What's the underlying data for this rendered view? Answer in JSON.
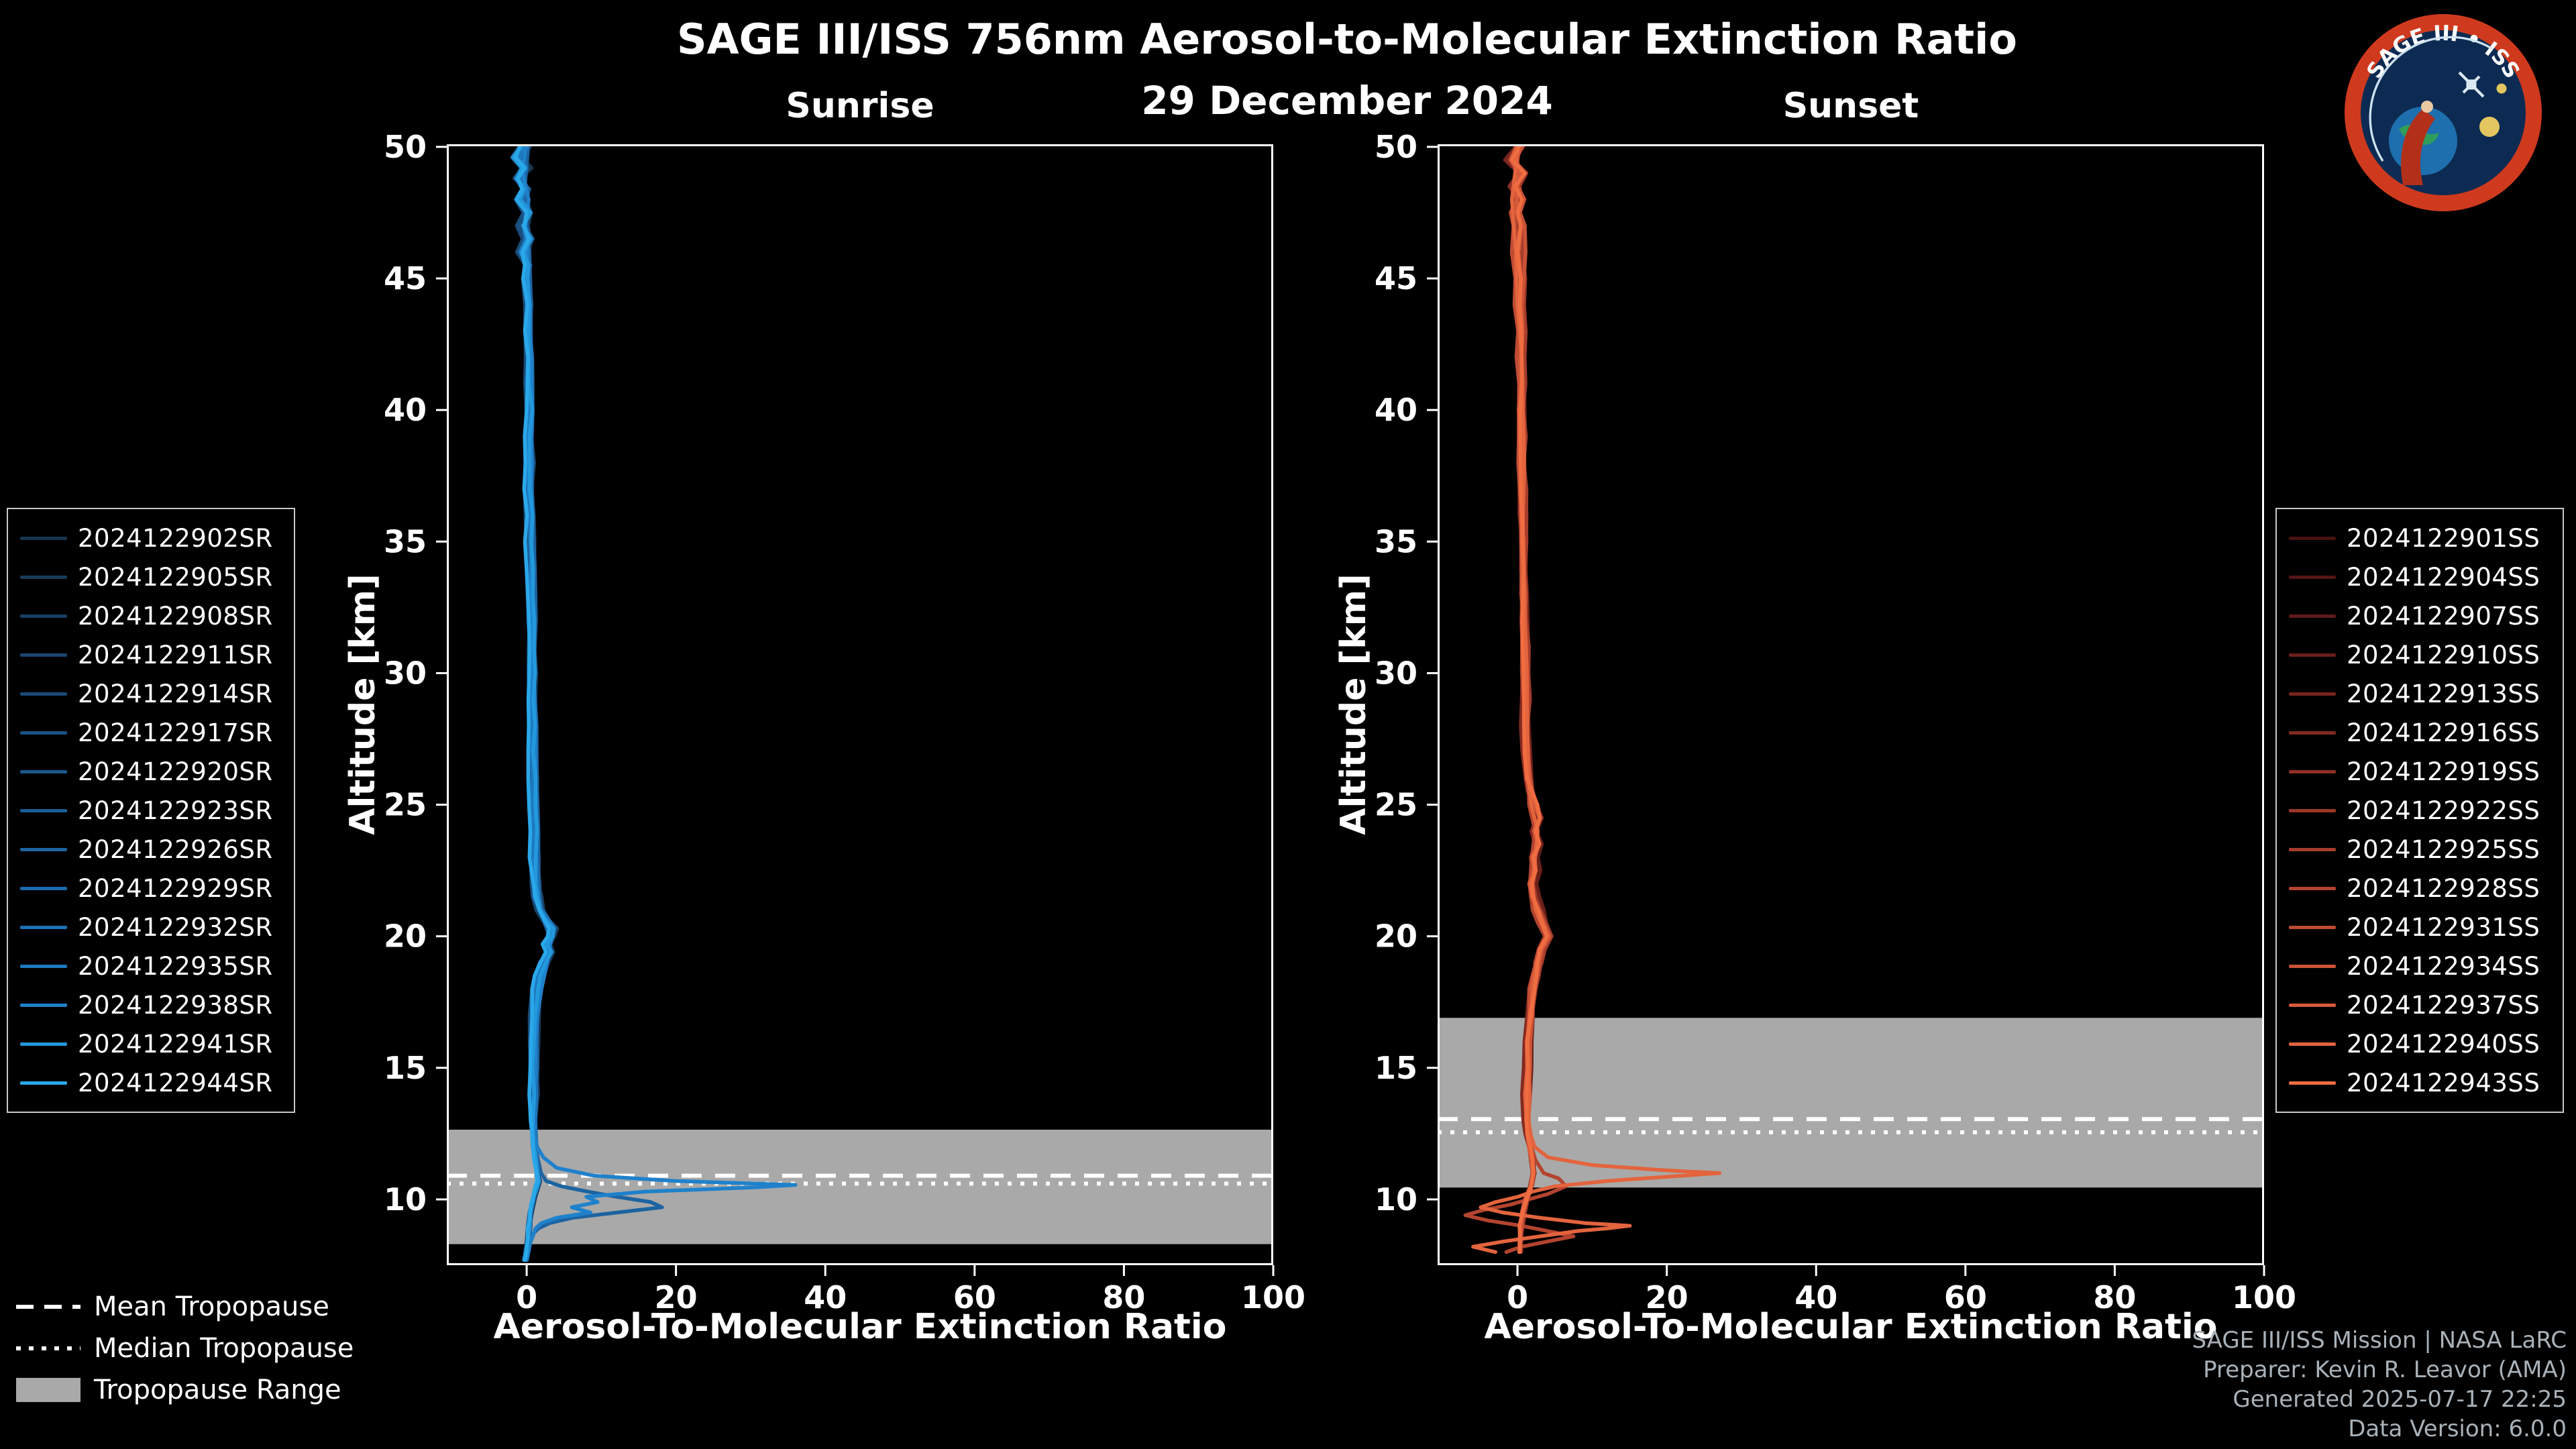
{
  "header": {
    "title": "SAGE III/ISS 756nm Aerosol-to-Molecular Extinction Ratio",
    "date": "29 December 2024"
  },
  "logo": {
    "title": "SAGE III • ISS"
  },
  "legend_tropopause": {
    "mean": "Mean Tropopause",
    "median": "Median Tropopause",
    "range": "Tropopause Range"
  },
  "credits": {
    "line1": "SAGE III/ISS Mission | NASA LaRC",
    "line2": "Preparer: Kevin R. Leavor (AMA)",
    "line3": "Generated 2025-07-17 22:25",
    "line4": "Data Version: 6.0.0"
  },
  "colors": {
    "background": "#000000",
    "axis": "#ffffff",
    "band": "#a9a9a9",
    "tropopause_line": "#ffffff",
    "sunrise_accent": "#2aa8ea",
    "sunset_accent": "#ef6d41"
  },
  "chart_data": [
    {
      "type": "line",
      "title": "Sunrise",
      "xlabel": "Aerosol-To-Molecular Extinction Ratio",
      "ylabel": "Altitude [km]",
      "xlim": [
        -10.7,
        100
      ],
      "ylim": [
        7.5,
        50.1
      ],
      "xticks": [
        0,
        20,
        40,
        60,
        80,
        100
      ],
      "yticks": [
        10,
        15,
        20,
        25,
        30,
        35,
        40,
        45,
        50
      ],
      "grid": false,
      "legend_position": "outside-left",
      "tropopause": {
        "mean_km": 10.9,
        "median_km": 10.6,
        "range_km": [
          8.3,
          12.65
        ]
      },
      "profiles": {
        "main": {
          "alt_km": [
            50,
            49.6,
            49.2,
            48.8,
            48.4,
            48,
            47.5,
            47,
            46.5,
            46,
            45.5,
            45,
            44,
            43,
            42,
            41,
            40,
            39,
            38,
            37,
            36,
            35,
            34,
            33,
            32,
            31,
            30,
            29,
            28,
            27,
            26,
            25,
            24,
            23,
            22,
            21.5,
            21,
            20.6,
            20.3,
            20,
            19.7,
            19.4,
            19,
            18.5,
            18,
            17,
            16,
            15,
            14,
            13,
            12.5,
            12,
            11.5,
            11,
            10.7,
            10.4,
            10.1,
            9.8,
            9.5,
            9.2,
            8.9,
            8.6,
            8.3,
            8,
            7.7
          ],
          "ratio": [
            -0.4,
            -1.3,
            -0.2,
            -1.0,
            0.1,
            -0.6,
            0.2,
            -0.4,
            0.3,
            -0.2,
            0.2,
            0.0,
            0.3,
            0.1,
            0.3,
            0.2,
            0.4,
            0.2,
            0.4,
            0.3,
            0.5,
            0.4,
            0.5,
            0.5,
            0.6,
            0.6,
            0.7,
            0.7,
            0.8,
            0.8,
            0.9,
            0.9,
            1.0,
            1.0,
            1.2,
            1.4,
            1.9,
            2.8,
            3.6,
            3.2,
            2.6,
            3.0,
            2.2,
            1.6,
            1.2,
            1.0,
            0.9,
            0.8,
            0.8,
            0.8,
            0.9,
            1.0,
            1.2,
            1.4,
            1.6,
            1.3,
            1.0,
            0.7,
            0.5,
            0.4,
            0.3,
            0.2,
            0.1,
            0.0,
            -0.2
          ]
        },
        "enhanced": {
          "alt_km": [
            50,
            49,
            48,
            47,
            46,
            45,
            44,
            43,
            42,
            41,
            40,
            38,
            36,
            34,
            32,
            30,
            28,
            26,
            24,
            22,
            21,
            20.5,
            20,
            19.5,
            19,
            18,
            17,
            16,
            15,
            14,
            13,
            12.5,
            12,
            11.6,
            11.2,
            10.9,
            10.7,
            10.55,
            10.45,
            10.3,
            10.1,
            9.9,
            9.7,
            9.5,
            9.3,
            9.1,
            8.9,
            8.6,
            8.3,
            8,
            7.7
          ],
          "ratio": [
            -0.5,
            -1.0,
            0,
            -0.4,
            0.2,
            0,
            0.3,
            0.1,
            0.3,
            0.2,
            0.4,
            0.4,
            0.5,
            0.6,
            0.6,
            0.7,
            0.8,
            0.9,
            1.0,
            1.2,
            1.6,
            2.6,
            3.4,
            2.8,
            2.4,
            1.6,
            1.2,
            1.0,
            0.9,
            0.8,
            0.8,
            1.0,
            1.4,
            2.2,
            4.0,
            9.0,
            20.0,
            36.0,
            30.0,
            16.0,
            8.0,
            9.5,
            6.0,
            8.5,
            4.0,
            2.0,
            1.2,
            0.8,
            0.4,
            0.2,
            0
          ]
        },
        "enhanced2": {
          "alt_km": [
            50,
            48,
            46,
            44,
            42,
            40,
            38,
            36,
            34,
            32,
            30,
            28,
            26,
            24,
            22,
            21,
            20.5,
            20,
            19.5,
            19,
            18,
            17,
            16,
            15,
            14,
            13,
            12.5,
            12,
            11.5,
            11,
            10.7,
            10.5,
            10.3,
            10.1,
            9.9,
            9.7,
            9.5,
            9.3,
            9.1,
            8.9,
            8.7,
            8.4,
            8.1,
            7.8
          ],
          "ratio": [
            -0.3,
            -0.8,
            0.1,
            0.2,
            0.3,
            0.4,
            0.4,
            0.5,
            0.6,
            0.7,
            0.7,
            0.8,
            0.9,
            1.0,
            1.2,
            1.5,
            2.2,
            3.0,
            2.6,
            2.2,
            1.5,
            1.2,
            1.0,
            0.9,
            0.8,
            0.8,
            0.9,
            1.1,
            1.4,
            1.8,
            2.5,
            4.5,
            8.0,
            12.0,
            16.5,
            18.0,
            12.0,
            6.0,
            3.0,
            1.5,
            0.8,
            0.4,
            0.2,
            0
          ]
        }
      },
      "series": [
        {
          "name": "2024122902SR",
          "color": "#16354f",
          "profile": "main"
        },
        {
          "name": "2024122905SR",
          "color": "#173a59",
          "profile": "main"
        },
        {
          "name": "2024122908SR",
          "color": "#183f63",
          "profile": "main"
        },
        {
          "name": "2024122911SR",
          "color": "#18456e",
          "profile": "main"
        },
        {
          "name": "2024122914SR",
          "color": "#194b78",
          "profile": "main"
        },
        {
          "name": "2024122917SR",
          "color": "#1a5182",
          "profile": "main"
        },
        {
          "name": "2024122920SR",
          "color": "#1a578d",
          "profile": "main"
        },
        {
          "name": "2024122923SR",
          "color": "#1b5e97",
          "profile": "main"
        },
        {
          "name": "2024122926SR",
          "color": "#1c64a1",
          "profile": "enhanced2"
        },
        {
          "name": "2024122929SR",
          "color": "#1c6bac",
          "profile": "main"
        },
        {
          "name": "2024122932SR",
          "color": "#1d72b6",
          "profile": "main"
        },
        {
          "name": "2024122935SR",
          "color": "#1e79c0",
          "profile": "main"
        },
        {
          "name": "2024122938SR",
          "color": "#1f81cb",
          "profile": "enhanced"
        },
        {
          "name": "2024122941SR",
          "color": "#2399dd",
          "profile": "main"
        },
        {
          "name": "2024122944SR",
          "color": "#2aa8ea",
          "profile": "main"
        }
      ]
    },
    {
      "type": "line",
      "title": "Sunset",
      "xlabel": "Aerosol-To-Molecular Extinction Ratio",
      "ylabel": "Altitude [km]",
      "xlim": [
        -10.7,
        100
      ],
      "ylim": [
        7.5,
        50.1
      ],
      "xticks": [
        0,
        20,
        40,
        60,
        80,
        100
      ],
      "yticks": [
        10,
        15,
        20,
        25,
        30,
        35,
        40,
        45,
        50
      ],
      "grid": false,
      "legend_position": "outside-right",
      "tropopause": {
        "mean_km": 13.05,
        "median_km": 12.55,
        "range_km": [
          10.45,
          16.9
        ]
      },
      "profiles": {
        "main": {
          "alt_km": [
            50,
            49.5,
            49,
            48.5,
            48,
            47.5,
            47,
            46,
            45,
            44,
            43,
            42,
            41,
            40,
            39,
            38,
            37,
            36,
            35,
            34,
            33,
            32,
            31,
            30,
            29,
            28,
            27,
            26,
            25.5,
            25,
            24.5,
            24,
            23.5,
            23,
            22.5,
            22,
            21.5,
            21,
            20.5,
            20,
            19.5,
            19,
            18.5,
            18,
            17,
            16,
            15,
            14,
            13,
            12.5,
            12,
            11.5,
            11,
            10.5,
            10,
            9.5,
            9,
            8.5,
            8
          ],
          "ratio": [
            0.2,
            -0.9,
            0.4,
            -0.5,
            0.3,
            -0.3,
            0.2,
            0.1,
            0.4,
            0.2,
            0.4,
            0.3,
            0.5,
            0.4,
            0.5,
            0.5,
            0.6,
            0.6,
            0.7,
            0.7,
            0.8,
            0.8,
            0.9,
            0.9,
            1.0,
            1.0,
            1.1,
            1.3,
            1.7,
            2.4,
            2.9,
            2.2,
            2.7,
            2.0,
            2.3,
            1.8,
            2.1,
            2.7,
            3.4,
            4.0,
            3.0,
            2.6,
            2.3,
            1.9,
            1.7,
            1.4,
            1.3,
            1.2,
            1.2,
            1.4,
            1.7,
            1.9,
            2.1,
            1.7,
            1.1,
            0.7,
            0.4,
            0.3,
            0.2
          ]
        },
        "enhanced": {
          "alt_km": [
            50,
            48,
            46,
            44,
            42,
            40,
            38,
            36,
            34,
            32,
            30,
            28,
            26,
            25,
            24,
            23,
            22,
            21,
            20.5,
            20,
            19.5,
            19,
            18,
            17,
            16,
            15,
            14,
            13,
            12.5,
            12,
            11.6,
            11.3,
            11.1,
            11,
            10.9,
            10.7,
            10.5,
            10.3,
            10.1,
            9.9,
            9.7,
            9.5,
            9.3,
            9.1,
            9,
            8.9,
            8.8,
            8.6,
            8.4,
            8.2,
            8
          ],
          "ratio": [
            0.2,
            -0.5,
            0.3,
            0.2,
            0.4,
            0.4,
            0.5,
            0.6,
            0.7,
            0.8,
            0.9,
            1.0,
            1.2,
            1.6,
            2.4,
            2.2,
            1.9,
            2.3,
            3.0,
            3.8,
            2.8,
            2.2,
            1.8,
            1.5,
            1.3,
            1.2,
            1.2,
            1.3,
            1.6,
            2.2,
            4.0,
            10.0,
            20.0,
            27.0,
            22.0,
            12.0,
            5.0,
            2.0,
            0.0,
            -3.0,
            -5.0,
            -2.0,
            3.0,
            9.0,
            15.0,
            12.0,
            8.0,
            3.0,
            -2.0,
            -6.0,
            -3.0
          ]
        },
        "enhanced2": {
          "alt_km": [
            50,
            48,
            46,
            44,
            42,
            40,
            38,
            36,
            34,
            32,
            30,
            28,
            26,
            25,
            24,
            23,
            22,
            21,
            20.5,
            20,
            19.5,
            19,
            18,
            17,
            16,
            15,
            14,
            13,
            12.5,
            12,
            11.5,
            11,
            10.8,
            10.5,
            10.2,
            10,
            9.8,
            9.6,
            9.4,
            9.2,
            9,
            8.8,
            8.6,
            8.4,
            8.2,
            8
          ],
          "ratio": [
            0.3,
            -0.3,
            0.2,
            0.3,
            0.4,
            0.5,
            0.5,
            0.6,
            0.7,
            0.8,
            0.9,
            1.0,
            1.2,
            1.5,
            2.2,
            2.0,
            1.8,
            2.2,
            2.8,
            3.5,
            2.6,
            2.0,
            1.7,
            1.4,
            1.3,
            1.2,
            1.2,
            1.3,
            1.5,
            1.9,
            2.4,
            3.5,
            5.5,
            6.5,
            4.0,
            1.5,
            -1.0,
            -4.5,
            -7.0,
            -4.0,
            0.5,
            4.0,
            7.5,
            4.0,
            0.5,
            -1.5
          ]
        }
      },
      "series": [
        {
          "name": "2024122901SS",
          "color": "#471110",
          "profile": "main"
        },
        {
          "name": "2024122904SS",
          "color": "#531514",
          "profile": "main"
        },
        {
          "name": "2024122907SS",
          "color": "#5f1a17",
          "profile": "main"
        },
        {
          "name": "2024122910SS",
          "color": "#6b1f1a",
          "profile": "main"
        },
        {
          "name": "2024122913SS",
          "color": "#77241e",
          "profile": "main"
        },
        {
          "name": "2024122916SS",
          "color": "#832a21",
          "profile": "main"
        },
        {
          "name": "2024122919SS",
          "color": "#8f3025",
          "profile": "main"
        },
        {
          "name": "2024122922SS",
          "color": "#9b3628",
          "profile": "main"
        },
        {
          "name": "2024122925SS",
          "color": "#a73d2c",
          "profile": "main"
        },
        {
          "name": "2024122928SS",
          "color": "#b3442f",
          "profile": "enhanced2"
        },
        {
          "name": "2024122931SS",
          "color": "#bf4b33",
          "profile": "main"
        },
        {
          "name": "2024122934SS",
          "color": "#cb5336",
          "profile": "main"
        },
        {
          "name": "2024122937SS",
          "color": "#d75b3a",
          "profile": "main"
        },
        {
          "name": "2024122940SS",
          "color": "#e3643d",
          "profile": "enhanced"
        },
        {
          "name": "2024122943SS",
          "color": "#ef6d41",
          "profile": "main"
        }
      ]
    }
  ]
}
